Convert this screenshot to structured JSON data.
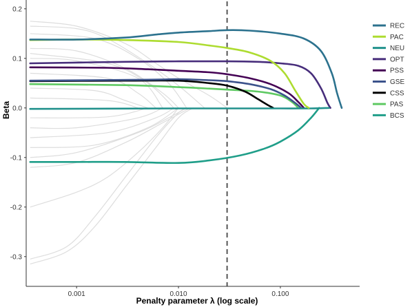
{
  "chart_data": {
    "type": "line",
    "title": "",
    "xlabel": "Penalty parameter λ (log scale)",
    "ylabel": "Beta",
    "x_scale": "log",
    "xlim": [
      0.00032,
      0.6
    ],
    "ylim": [
      -0.36,
      0.215
    ],
    "x_ticks": [
      {
        "value": 0.001,
        "label": "0.001"
      },
      {
        "value": 0.01,
        "label": "0.010"
      },
      {
        "value": 0.1,
        "label": "0.100"
      }
    ],
    "y_ticks": [
      {
        "value": 0.2,
        "label": "0.2"
      },
      {
        "value": 0.1,
        "label": "0.1"
      },
      {
        "value": 0.0,
        "label": "0.0"
      },
      {
        "value": -0.1,
        "label": "-0.1"
      },
      {
        "value": -0.2,
        "label": "-0.2"
      },
      {
        "value": -0.3,
        "label": "-0.3"
      }
    ],
    "grid": false,
    "legend_position": "right",
    "reference_line": {
      "x": 0.03,
      "style": "dashed",
      "color": "#555555"
    },
    "series": [
      {
        "name": "REC",
        "color": "#2c728e",
        "points": [
          [
            0.00035,
            0.138
          ],
          [
            0.001,
            0.138
          ],
          [
            0.003,
            0.142
          ],
          [
            0.006,
            0.148
          ],
          [
            0.01,
            0.152
          ],
          [
            0.02,
            0.155
          ],
          [
            0.03,
            0.157
          ],
          [
            0.05,
            0.156
          ],
          [
            0.1,
            0.15
          ],
          [
            0.17,
            0.14
          ],
          [
            0.25,
            0.115
          ],
          [
            0.32,
            0.07
          ],
          [
            0.36,
            0.03
          ],
          [
            0.4,
            0.0
          ]
        ]
      },
      {
        "name": "PAC",
        "color": "#addc30",
        "points": [
          [
            0.00035,
            0.137
          ],
          [
            0.001,
            0.138
          ],
          [
            0.003,
            0.137
          ],
          [
            0.01,
            0.133
          ],
          [
            0.02,
            0.126
          ],
          [
            0.03,
            0.121
          ],
          [
            0.05,
            0.112
          ],
          [
            0.08,
            0.095
          ],
          [
            0.11,
            0.07
          ],
          [
            0.14,
            0.035
          ],
          [
            0.17,
            0.008
          ],
          [
            0.19,
            0.0
          ]
        ]
      },
      {
        "name": "NEU",
        "color": "#21918c",
        "points": [
          [
            0.00035,
            -0.002
          ],
          [
            0.01,
            -0.001
          ],
          [
            0.05,
            -0.001
          ],
          [
            0.1,
            -0.001
          ],
          [
            0.2,
            -0.001
          ],
          [
            0.3,
            0.0
          ]
        ]
      },
      {
        "name": "OPT",
        "color": "#472d7b",
        "points": [
          [
            0.00035,
            0.09
          ],
          [
            0.003,
            0.093
          ],
          [
            0.01,
            0.094
          ],
          [
            0.03,
            0.094
          ],
          [
            0.06,
            0.093
          ],
          [
            0.1,
            0.09
          ],
          [
            0.15,
            0.085
          ],
          [
            0.2,
            0.07
          ],
          [
            0.25,
            0.04
          ],
          [
            0.29,
            0.01
          ],
          [
            0.31,
            0.0
          ]
        ]
      },
      {
        "name": "PSS",
        "color": "#440154",
        "points": [
          [
            0.00035,
            0.082
          ],
          [
            0.002,
            0.081
          ],
          [
            0.005,
            0.078
          ],
          [
            0.01,
            0.075
          ],
          [
            0.02,
            0.072
          ],
          [
            0.03,
            0.068
          ],
          [
            0.05,
            0.06
          ],
          [
            0.08,
            0.048
          ],
          [
            0.12,
            0.03
          ],
          [
            0.15,
            0.012
          ],
          [
            0.17,
            0.0
          ]
        ]
      },
      {
        "name": "GSE",
        "color": "#3b528b",
        "points": [
          [
            0.00035,
            0.055
          ],
          [
            0.005,
            0.057
          ],
          [
            0.01,
            0.058
          ],
          [
            0.02,
            0.056
          ],
          [
            0.03,
            0.054
          ],
          [
            0.05,
            0.048
          ],
          [
            0.08,
            0.038
          ],
          [
            0.11,
            0.025
          ],
          [
            0.14,
            0.01
          ],
          [
            0.16,
            0.0
          ]
        ]
      },
      {
        "name": "CSS",
        "color": "#000000",
        "points": [
          [
            0.00035,
            0.054
          ],
          [
            0.003,
            0.055
          ],
          [
            0.01,
            0.055
          ],
          [
            0.02,
            0.05
          ],
          [
            0.03,
            0.045
          ],
          [
            0.045,
            0.033
          ],
          [
            0.06,
            0.018
          ],
          [
            0.075,
            0.006
          ],
          [
            0.085,
            0.0
          ]
        ]
      },
      {
        "name": "PAS",
        "color": "#5ec962",
        "points": [
          [
            0.00035,
            0.048
          ],
          [
            0.003,
            0.046
          ],
          [
            0.01,
            0.042
          ],
          [
            0.02,
            0.039
          ],
          [
            0.03,
            0.037
          ],
          [
            0.06,
            0.033
          ],
          [
            0.1,
            0.025
          ],
          [
            0.13,
            0.012
          ],
          [
            0.15,
            0.0
          ]
        ]
      },
      {
        "name": "BCS",
        "color": "#1f9e89",
        "points": [
          [
            0.00035,
            -0.109
          ],
          [
            0.001,
            -0.109
          ],
          [
            0.003,
            -0.109
          ],
          [
            0.01,
            -0.111
          ],
          [
            0.02,
            -0.106
          ],
          [
            0.04,
            -0.096
          ],
          [
            0.07,
            -0.082
          ],
          [
            0.1,
            -0.068
          ],
          [
            0.15,
            -0.045
          ],
          [
            0.2,
            -0.02
          ],
          [
            0.24,
            0.0
          ]
        ]
      }
    ],
    "background_paths": [
      [
        [
          0.00035,
          0.175
        ],
        [
          0.001,
          0.165
        ],
        [
          0.003,
          0.13
        ],
        [
          0.006,
          0.09
        ],
        [
          0.01,
          0.06
        ],
        [
          0.02,
          0.025
        ],
        [
          0.03,
          0.0
        ]
      ],
      [
        [
          0.00035,
          0.165
        ],
        [
          0.001,
          0.16
        ],
        [
          0.002,
          0.14
        ],
        [
          0.005,
          0.09
        ],
        [
          0.01,
          0.045
        ],
        [
          0.018,
          0.0
        ]
      ],
      [
        [
          0.00035,
          0.15
        ],
        [
          0.0015,
          0.14
        ],
        [
          0.004,
          0.1
        ],
        [
          0.008,
          0.05
        ],
        [
          0.012,
          0.0
        ]
      ],
      [
        [
          0.00035,
          0.12
        ],
        [
          0.001,
          0.115
        ],
        [
          0.003,
          0.08
        ],
        [
          0.007,
          0.03
        ],
        [
          0.01,
          0.0
        ]
      ],
      [
        [
          0.00035,
          0.11
        ],
        [
          0.002,
          0.09
        ],
        [
          0.005,
          0.05
        ],
        [
          0.009,
          0.0
        ]
      ],
      [
        [
          0.00035,
          0.1
        ],
        [
          0.001,
          0.095
        ],
        [
          0.004,
          0.06
        ],
        [
          0.007,
          0.0
        ]
      ],
      [
        [
          0.00035,
          0.07
        ],
        [
          0.002,
          0.06
        ],
        [
          0.004,
          0.03
        ],
        [
          0.006,
          0.0
        ]
      ],
      [
        [
          0.00035,
          0.04
        ],
        [
          0.0015,
          0.035
        ],
        [
          0.003,
          0.015
        ],
        [
          0.005,
          0.0
        ]
      ],
      [
        [
          0.00035,
          0.02
        ],
        [
          0.002,
          0.015
        ],
        [
          0.004,
          0.0
        ]
      ],
      [
        [
          0.00035,
          -0.02
        ],
        [
          0.002,
          -0.018
        ],
        [
          0.005,
          0.0
        ]
      ],
      [
        [
          0.00035,
          -0.04
        ],
        [
          0.001,
          -0.04
        ],
        [
          0.004,
          -0.02
        ],
        [
          0.007,
          0.0
        ]
      ],
      [
        [
          0.00035,
          -0.06
        ],
        [
          0.002,
          -0.05
        ],
        [
          0.006,
          -0.02
        ],
        [
          0.009,
          0.0
        ]
      ],
      [
        [
          0.00035,
          -0.08
        ],
        [
          0.0015,
          -0.075
        ],
        [
          0.005,
          -0.04
        ],
        [
          0.01,
          0.0
        ]
      ],
      [
        [
          0.00035,
          -0.1
        ],
        [
          0.001,
          -0.09
        ],
        [
          0.004,
          -0.05
        ],
        [
          0.008,
          -0.02
        ],
        [
          0.012,
          0.0
        ]
      ],
      [
        [
          0.00035,
          -0.12
        ],
        [
          0.001,
          -0.11
        ],
        [
          0.003,
          -0.07
        ],
        [
          0.007,
          -0.03
        ],
        [
          0.013,
          0.0
        ]
      ],
      [
        [
          0.00035,
          -0.2
        ],
        [
          0.001,
          -0.17
        ],
        [
          0.002,
          -0.14
        ],
        [
          0.004,
          -0.09
        ],
        [
          0.007,
          -0.04
        ],
        [
          0.01,
          0.0
        ]
      ],
      [
        [
          0.00035,
          -0.305
        ],
        [
          0.0008,
          -0.28
        ],
        [
          0.0015,
          -0.22
        ],
        [
          0.003,
          -0.14
        ],
        [
          0.006,
          -0.06
        ],
        [
          0.01,
          -0.01
        ],
        [
          0.012,
          0.0
        ]
      ],
      [
        [
          0.00035,
          -0.315
        ],
        [
          0.0008,
          -0.29
        ],
        [
          0.0015,
          -0.24
        ],
        [
          0.003,
          -0.16
        ],
        [
          0.006,
          -0.08
        ],
        [
          0.01,
          -0.02
        ],
        [
          0.014,
          0.0
        ]
      ]
    ]
  }
}
